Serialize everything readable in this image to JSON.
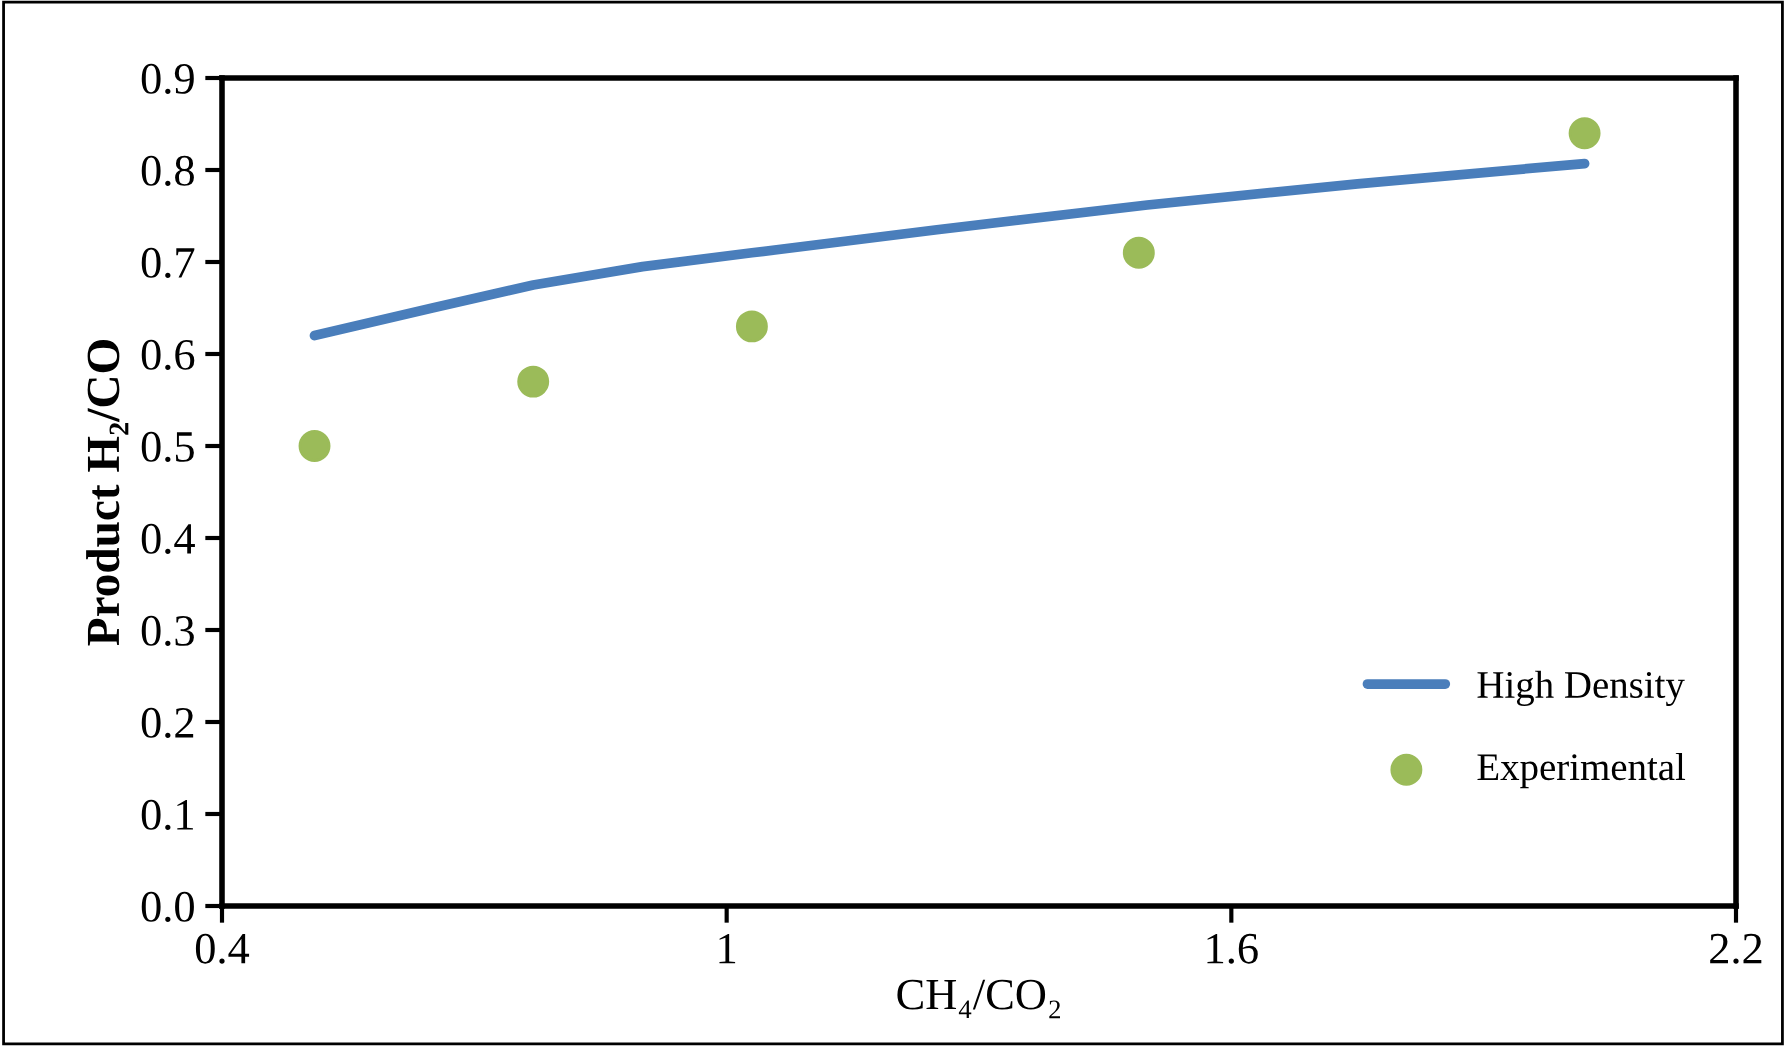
{
  "chart_data": {
    "type": "line",
    "xlabel": "CH₄/CO₂",
    "ylabel": "Product H₂/CO",
    "xlim": [
      0.4,
      2.2
    ],
    "xticks": [
      0.4,
      1,
      1.6,
      2.2
    ],
    "ylim": [
      0,
      0.9
    ],
    "yticks": [
      {
        "value": 0,
        "label": "0.0"
      },
      0.1,
      0.2,
      0.3,
      0.4,
      0.5,
      0.6,
      0.7,
      0.8,
      0.9
    ],
    "grid": false,
    "legend": "bottom right",
    "series": [
      {
        "name": "High Density",
        "color": "#4a7ebb",
        "marker": "none",
        "line_style": "solid",
        "x": [
          0.51,
          0.65,
          0.77,
          0.9,
          1.03,
          1.25,
          1.5,
          1.75,
          2.02
        ],
        "values": [
          0.62,
          0.65,
          0.675,
          0.695,
          0.71,
          0.735,
          0.762,
          0.785,
          0.807
        ]
      },
      {
        "name": "Experimental",
        "type": "scatter",
        "color": "#9bbb59",
        "marker": "circle",
        "x": [
          0.51,
          0.77,
          1.03,
          1.49,
          2.02
        ],
        "values": [
          0.5,
          0.57,
          0.63,
          0.71,
          0.84
        ]
      }
    ]
  }
}
